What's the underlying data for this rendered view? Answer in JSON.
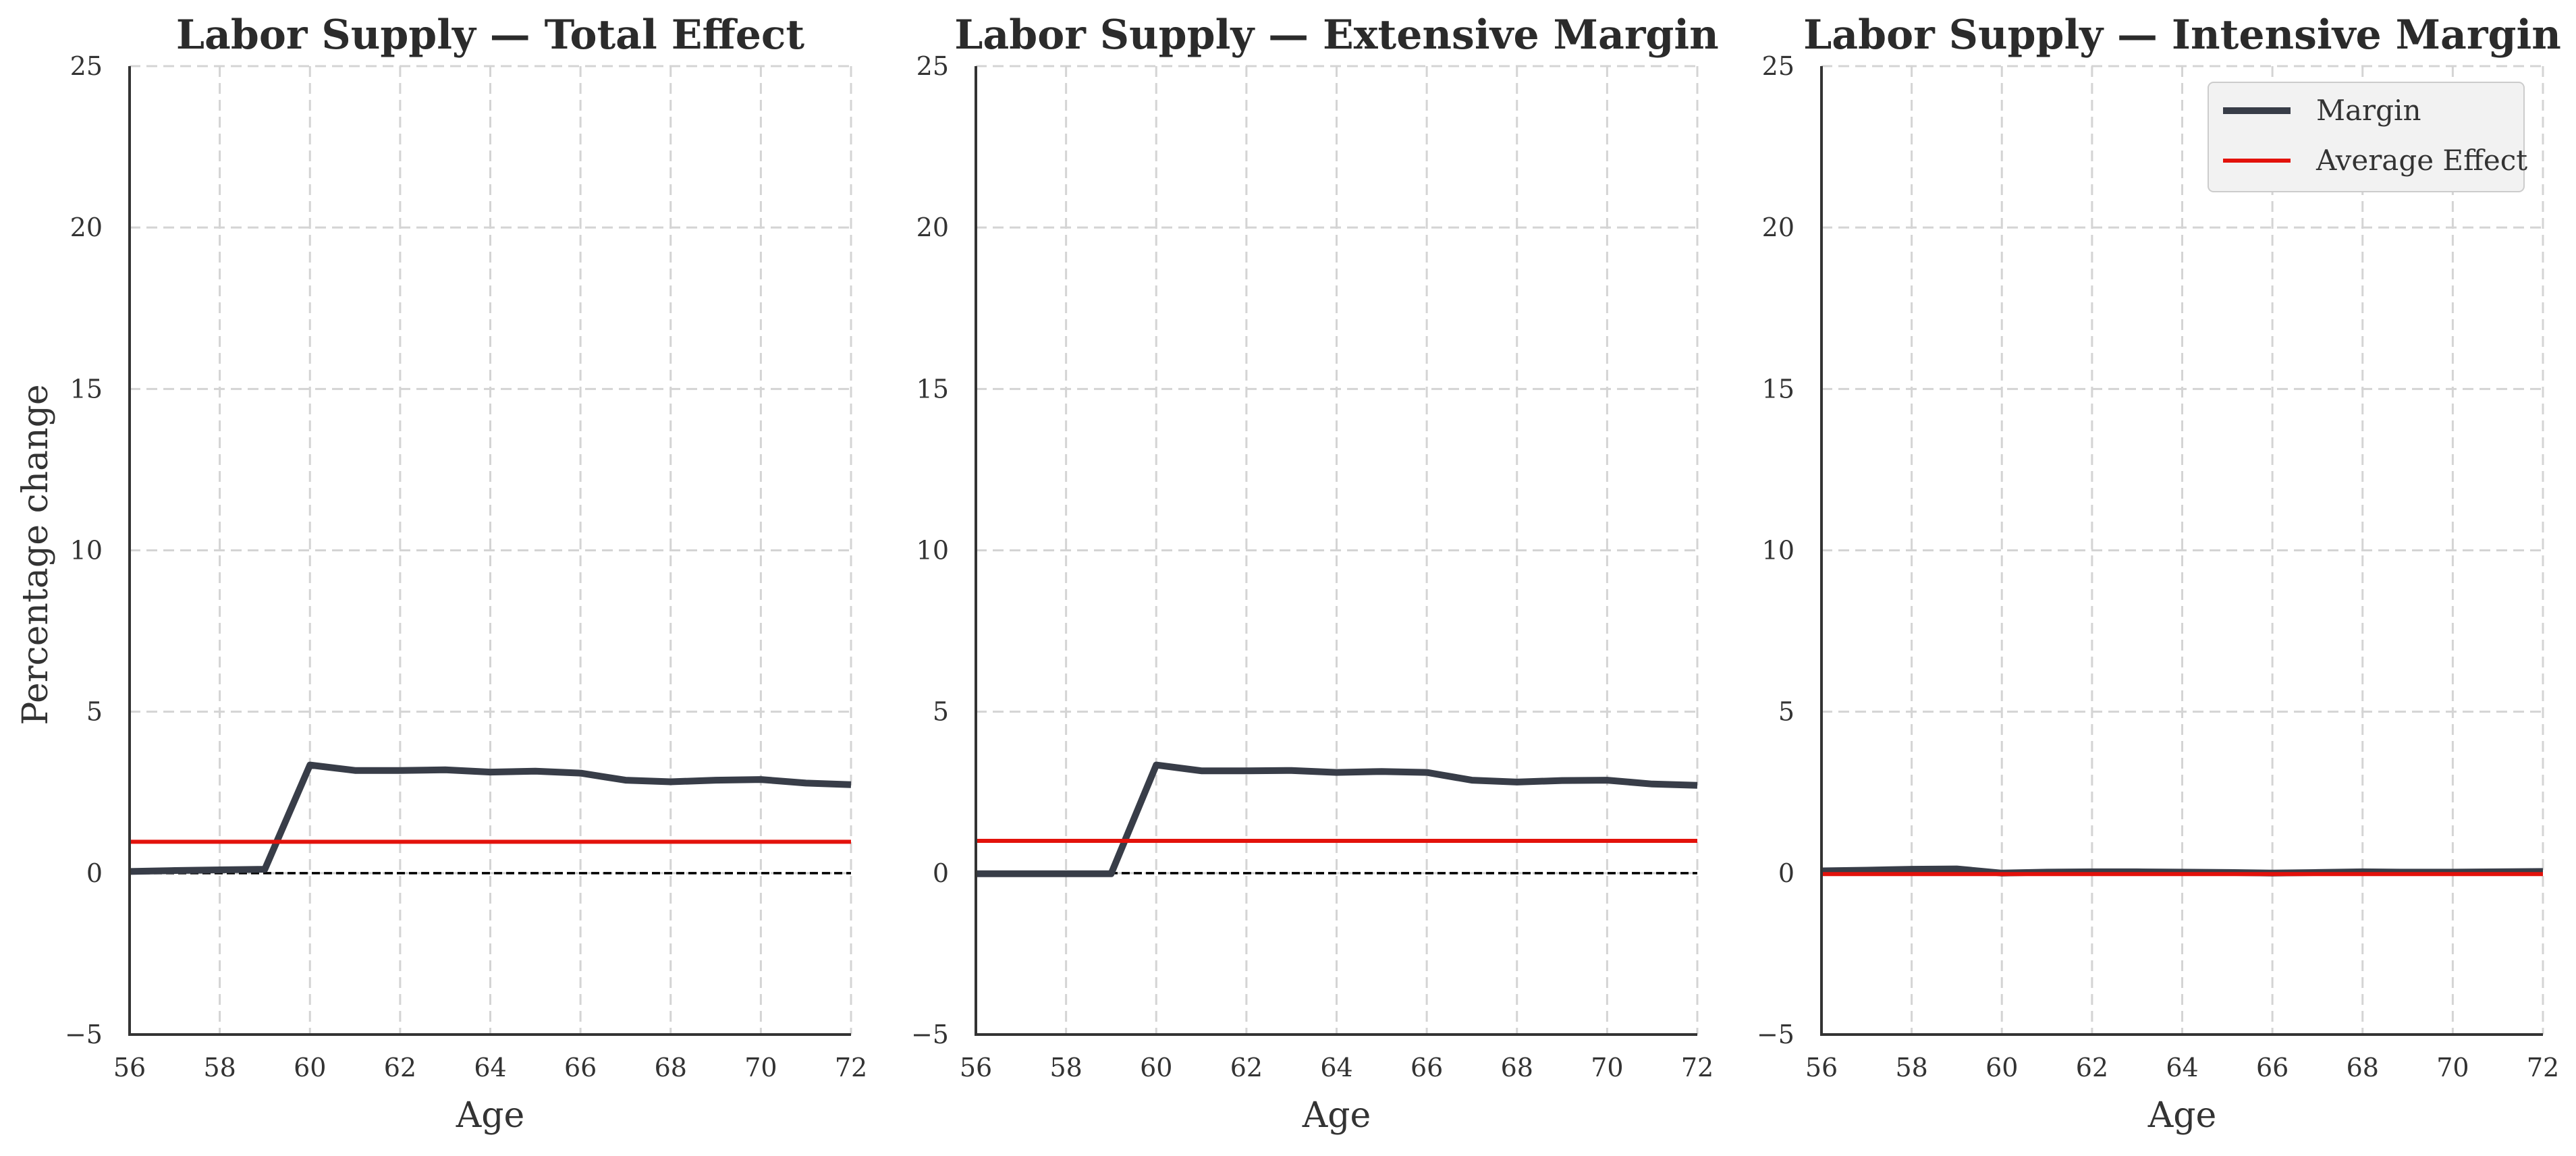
{
  "colors": {
    "margin_line": "#383d48",
    "average_line": "#e3120b",
    "zero_line": "#000000",
    "grid": "#d4d4d4",
    "axis": "#333333",
    "legend_bg": "#f2f2f2",
    "legend_border": "#cccccc"
  },
  "chart_data": [
    {
      "type": "line",
      "title": "Labor Supply — Total Effect",
      "xlabel": "Age",
      "ylabel": "Percentage change",
      "xlim": [
        56,
        72
      ],
      "ylim": [
        -5,
        25
      ],
      "xticks": [
        56,
        58,
        60,
        62,
        64,
        66,
        68,
        70,
        72
      ],
      "yticks": [
        -5,
        0,
        5,
        10,
        15,
        20,
        25
      ],
      "ytick_labels": [
        "−5",
        "0",
        "5",
        "10",
        "15",
        "20",
        "25"
      ],
      "grid": true,
      "zero_line": 0,
      "x": [
        56,
        57,
        58,
        59,
        60,
        61,
        62,
        63,
        64,
        65,
        66,
        67,
        68,
        69,
        70,
        71,
        72
      ],
      "series": [
        {
          "name": "Margin",
          "values": [
            0.05,
            0.08,
            0.1,
            0.12,
            3.35,
            3.18,
            3.18,
            3.2,
            3.13,
            3.16,
            3.1,
            2.88,
            2.83,
            2.88,
            2.9,
            2.79,
            2.74
          ]
        },
        {
          "name": "Average Effect",
          "values": [
            0.97,
            0.97,
            0.97,
            0.97,
            0.97,
            0.97,
            0.97,
            0.97,
            0.97,
            0.97,
            0.97,
            0.97,
            0.97,
            0.97,
            0.97,
            0.97,
            0.97
          ]
        }
      ]
    },
    {
      "type": "line",
      "title": "Labor Supply — Extensive Margin",
      "xlabel": "Age",
      "xlim": [
        56,
        72
      ],
      "ylim": [
        -5,
        25
      ],
      "xticks": [
        56,
        58,
        60,
        62,
        64,
        66,
        68,
        70,
        72
      ],
      "yticks": [
        -5,
        0,
        5,
        10,
        15,
        20,
        25
      ],
      "ytick_labels": [
        "−5",
        "0",
        "5",
        "10",
        "15",
        "20",
        "25"
      ],
      "grid": true,
      "zero_line": 0,
      "x": [
        56,
        57,
        58,
        59,
        60,
        61,
        62,
        63,
        64,
        65,
        66,
        67,
        68,
        69,
        70,
        71,
        72
      ],
      "series": [
        {
          "name": "Margin",
          "values": [
            -0.02,
            -0.02,
            -0.02,
            -0.02,
            3.35,
            3.17,
            3.17,
            3.18,
            3.12,
            3.15,
            3.12,
            2.88,
            2.82,
            2.87,
            2.88,
            2.76,
            2.72
          ]
        },
        {
          "name": "Average Effect",
          "values": [
            1.0,
            1.0,
            1.0,
            1.0,
            1.0,
            1.0,
            1.0,
            1.0,
            1.0,
            1.0,
            1.0,
            1.0,
            1.0,
            1.0,
            1.0,
            1.0,
            1.0
          ]
        }
      ]
    },
    {
      "type": "line",
      "title": "Labor Supply — Intensive Margin",
      "xlabel": "Age",
      "xlim": [
        56,
        72
      ],
      "ylim": [
        -5,
        25
      ],
      "xticks": [
        56,
        58,
        60,
        62,
        64,
        66,
        68,
        70,
        72
      ],
      "yticks": [
        -5,
        0,
        5,
        10,
        15,
        20,
        25
      ],
      "ytick_labels": [
        "−5",
        "0",
        "5",
        "10",
        "15",
        "20",
        "25"
      ],
      "grid": true,
      "zero_line": 0,
      "legend": {
        "placement": "top-right",
        "entries": [
          "Margin",
          "Average Effect"
        ]
      },
      "x": [
        56,
        57,
        58,
        59,
        60,
        61,
        62,
        63,
        64,
        65,
        66,
        67,
        68,
        69,
        70,
        71,
        72
      ],
      "series": [
        {
          "name": "Margin",
          "values": [
            0.07,
            0.09,
            0.12,
            0.13,
            0.0,
            0.03,
            0.04,
            0.04,
            0.03,
            0.02,
            0.0,
            0.02,
            0.04,
            0.03,
            0.03,
            0.04,
            0.05
          ]
        },
        {
          "name": "Average Effect",
          "values": [
            -0.03,
            -0.03,
            -0.03,
            -0.03,
            -0.03,
            -0.03,
            -0.03,
            -0.03,
            -0.03,
            -0.03,
            -0.03,
            -0.03,
            -0.03,
            -0.03,
            -0.03,
            -0.03,
            -0.03
          ]
        }
      ]
    }
  ]
}
